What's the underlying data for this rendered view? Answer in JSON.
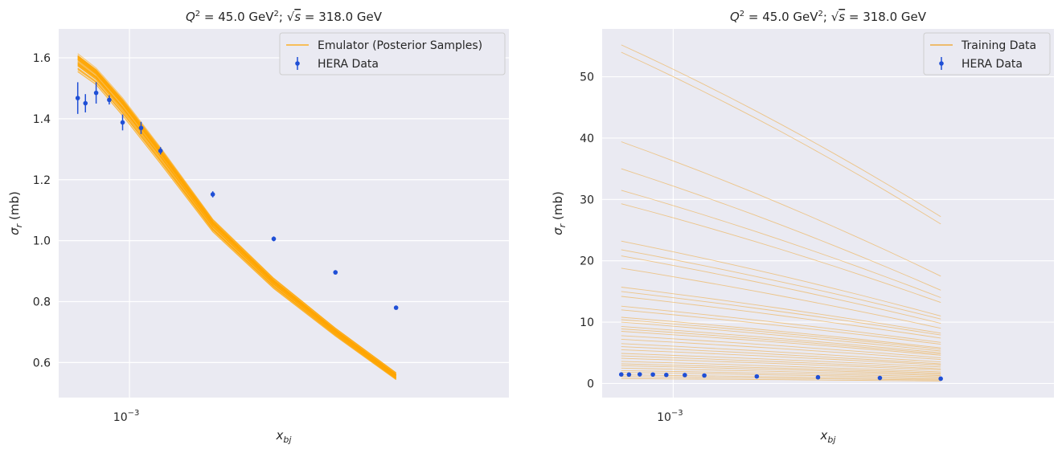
{
  "colors": {
    "emulator": "#ffa500",
    "training": "#f0a020",
    "hera": "#1f4fd6"
  },
  "chart_data": [
    {
      "type": "line",
      "title": "Q² = 45.0 GeV²; √s = 318.0 GeV",
      "title_parts": {
        "q": "Q",
        "sup1": "2",
        "mid": " = 45.0 GeV",
        "sup2": "2",
        "sep": "; ",
        "sqrt": "√",
        "s": "s",
        "end": " = 318.0 GeV"
      },
      "xlabel": "x",
      "xlabel_sub": "bj",
      "ylabel": "σ",
      "ylabel_sub": "r",
      "ylabel_unit": " (mb)",
      "xscale": "log",
      "xlim": [
        0.00059,
        0.0169
      ],
      "ylim": [
        0.485,
        1.695
      ],
      "yticks": [
        0.6,
        0.8,
        1.0,
        1.2,
        1.4,
        1.6
      ],
      "ytick_labels": [
        "0.6",
        "0.8",
        "1.0",
        "1.2",
        "1.4",
        "1.6"
      ],
      "xticks": [
        0.001
      ],
      "xtick_labels": [
        {
          "base": "10",
          "exp": "−3"
        }
      ],
      "legend": {
        "placement": "top-right",
        "entries": [
          "Emulator (Posterior Samples)",
          "HERA Data"
        ]
      },
      "hera": {
        "name": "HERA Data",
        "x": [
          0.00068,
          0.00072,
          0.00078,
          0.00086,
          0.00095,
          0.00109,
          0.00126,
          0.00186,
          0.00293,
          0.00464,
          0.00729
        ],
        "y": [
          1.468,
          1.451,
          1.485,
          1.462,
          1.388,
          1.37,
          1.295,
          1.152,
          1.006,
          0.896,
          0.78
        ],
        "yerr": [
          0.052,
          0.03,
          0.035,
          0.015,
          0.026,
          0.02,
          0.012,
          0.01,
          0.008,
          0.007,
          0.006
        ]
      },
      "emulator": {
        "name": "Emulator (Posterior Samples)",
        "x": [
          0.00068,
          0.00078,
          0.00095,
          0.00126,
          0.00186,
          0.00293,
          0.00464,
          0.00729
        ],
        "center": [
          1.585,
          1.54,
          1.44,
          1.28,
          1.05,
          0.86,
          0.7,
          0.555
        ],
        "spread": [
          0.03,
          0.028,
          0.03,
          0.028,
          0.022,
          0.018,
          0.014,
          0.012
        ],
        "n_samples": 45
      }
    },
    {
      "type": "line",
      "title": "Q² = 45.0 GeV²; √s = 318.0 GeV",
      "title_parts": {
        "q": "Q",
        "sup1": "2",
        "mid": " = 45.0 GeV",
        "sup2": "2",
        "sep": "; ",
        "sqrt": "√",
        "s": "s",
        "end": " = 318.0 GeV"
      },
      "xlabel": "x",
      "xlabel_sub": "bj",
      "ylabel": "σ",
      "ylabel_sub": "r",
      "ylabel_unit": " (mb)",
      "xscale": "log",
      "xlim": [
        0.00059,
        0.0169
      ],
      "ylim": [
        -2.3,
        57.8
      ],
      "yticks": [
        0,
        10,
        20,
        30,
        40,
        50
      ],
      "ytick_labels": [
        "0",
        "10",
        "20",
        "30",
        "40",
        "50"
      ],
      "xticks": [
        0.001
      ],
      "xtick_labels": [
        {
          "base": "10",
          "exp": "−3"
        }
      ],
      "legend": {
        "placement": "top-right",
        "entries": [
          "Training Data",
          "HERA Data"
        ]
      },
      "hera": {
        "name": "HERA Data",
        "x": [
          0.00068,
          0.00072,
          0.00078,
          0.00086,
          0.00095,
          0.00109,
          0.00126,
          0.00186,
          0.00293,
          0.00464,
          0.00729
        ],
        "y": [
          1.47,
          1.45,
          1.49,
          1.46,
          1.39,
          1.37,
          1.3,
          1.15,
          1.01,
          0.9,
          0.78
        ],
        "yerr": [
          0,
          0,
          0,
          0,
          0,
          0,
          0,
          0,
          0,
          0,
          0
        ]
      },
      "training": {
        "name": "Training Data",
        "x_start": 0.00068,
        "x_end": 0.00729,
        "start_values": [
          55.2,
          54.0,
          39.4,
          35.0,
          31.5,
          29.3,
          23.2,
          21.8,
          20.8,
          18.8,
          15.7,
          15.0,
          14.2,
          12.6,
          12.0,
          10.8,
          10.4,
          10.0,
          9.3,
          8.9,
          8.5,
          7.8,
          7.2,
          6.5,
          6.0,
          5.5,
          4.9,
          4.5,
          4.1,
          3.6,
          3.2,
          2.9,
          2.5,
          2.1,
          1.8,
          1.4,
          1.1,
          0.8
        ],
        "end_values": [
          27.2,
          26.0,
          17.5,
          15.2,
          14.0,
          13.2,
          11.0,
          10.5,
          9.8,
          9.0,
          8.2,
          7.9,
          7.4,
          6.7,
          6.4,
          5.8,
          5.6,
          5.3,
          5.0,
          4.8,
          4.6,
          4.2,
          3.9,
          3.5,
          3.2,
          3.0,
          2.7,
          2.4,
          2.2,
          1.9,
          1.7,
          1.5,
          1.3,
          1.1,
          0.9,
          0.7,
          0.55,
          0.4
        ]
      }
    }
  ]
}
